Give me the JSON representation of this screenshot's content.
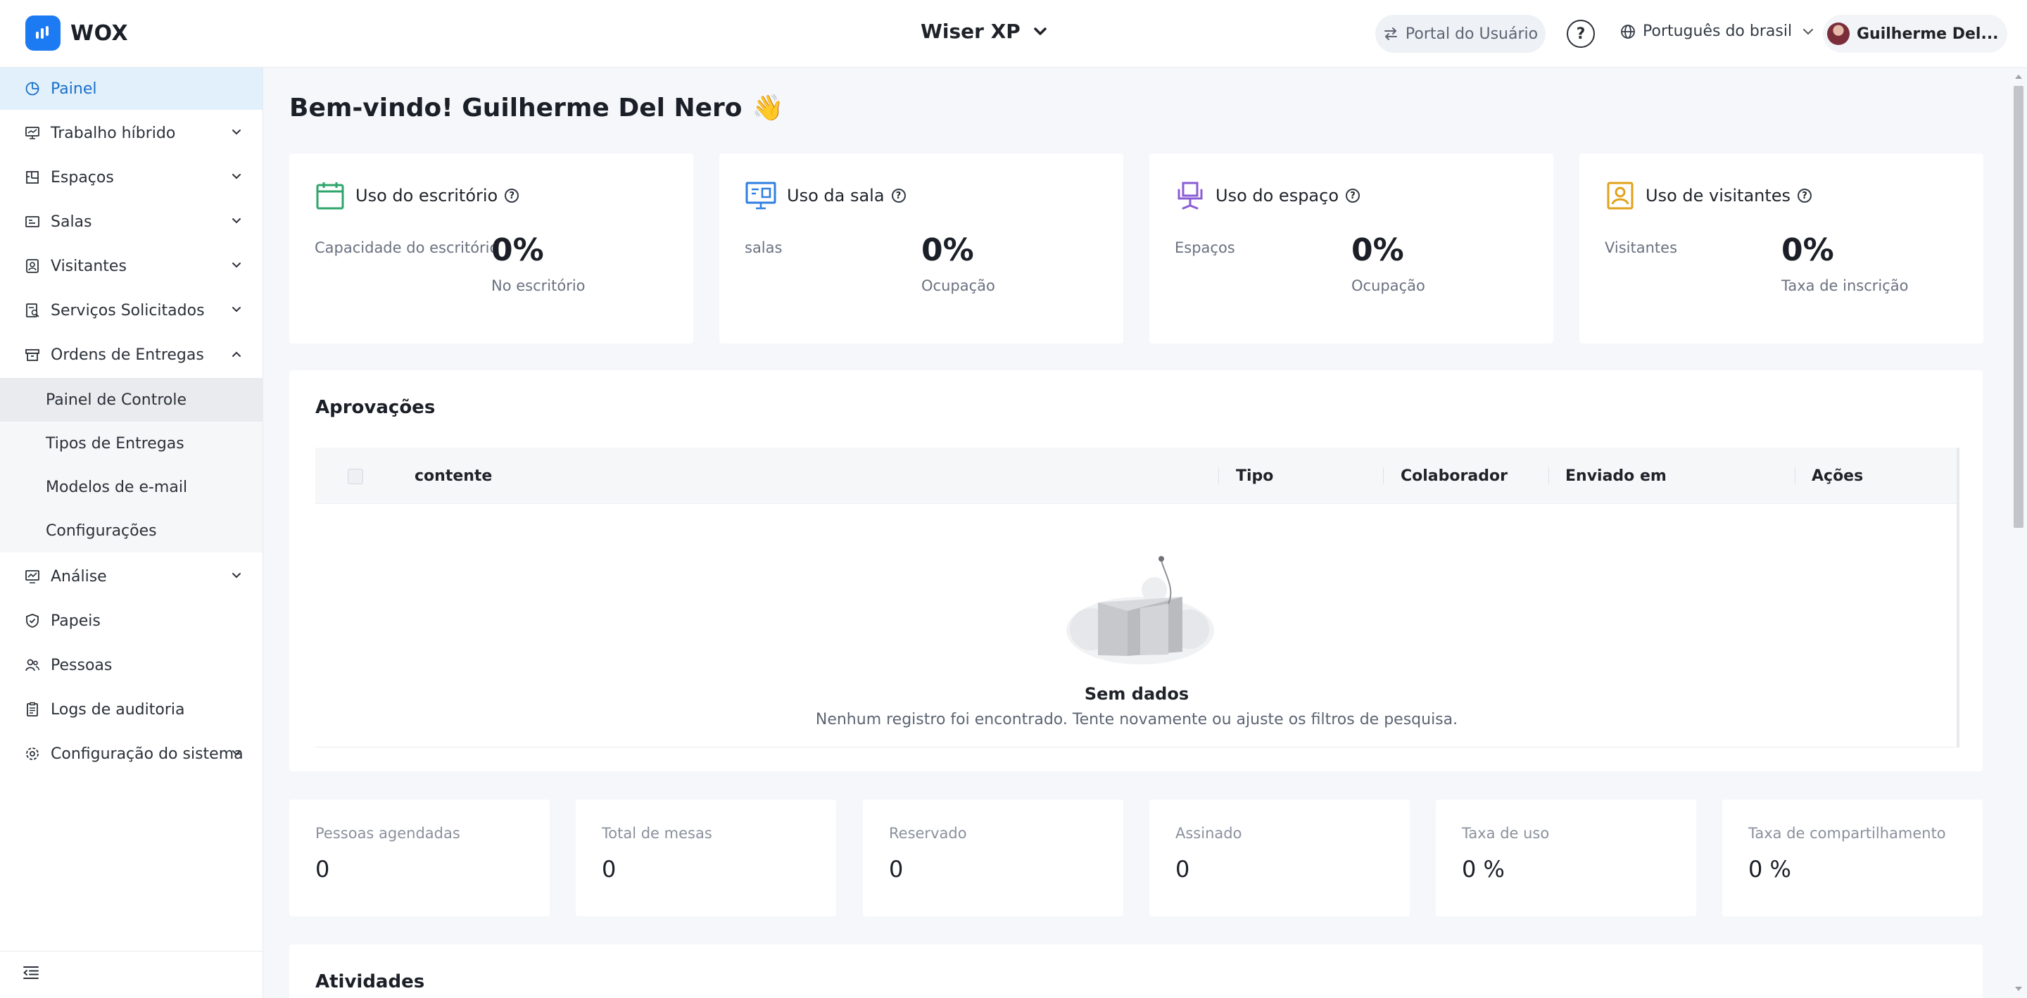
{
  "header": {
    "logo_text": "WOX",
    "workspace": "Wiser XP",
    "portal_label": "Portal do Usuário",
    "language": "Português do brasil",
    "user_name": "Guilherme Del..."
  },
  "sidebar": {
    "items": [
      {
        "label": "Painel",
        "icon": "dashboard-icon"
      },
      {
        "label": "Trabalho híbrido",
        "icon": "monitor-icon"
      },
      {
        "label": "Espaços",
        "icon": "floorplan-icon"
      },
      {
        "label": "Salas",
        "icon": "room-icon"
      },
      {
        "label": "Visitantes",
        "icon": "visitor-icon"
      },
      {
        "label": "Serviços Solicitados",
        "icon": "service-icon"
      },
      {
        "label": "Ordens de Entregas",
        "icon": "box-icon"
      },
      {
        "label": "Análise",
        "icon": "chart-icon"
      },
      {
        "label": "Papeis",
        "icon": "shield-icon"
      },
      {
        "label": "Pessoas",
        "icon": "people-icon"
      },
      {
        "label": "Logs de auditoria",
        "icon": "clipboard-icon"
      },
      {
        "label": "Configuração do sistema",
        "icon": "settings-icon"
      }
    ],
    "subitems": [
      "Painel de Controle",
      "Tipos de Entregas",
      "Modelos de e-mail",
      "Configurações"
    ]
  },
  "main": {
    "welcome": "Bem-vindo! Guilherme Del Nero",
    "welcome_emoji": "👋",
    "cards": [
      {
        "title": "Uso do escritório",
        "label": "Capacidade do escritório",
        "value": "0%",
        "sub": "No escritório",
        "color": "#2fa56b"
      },
      {
        "title": "Uso da sala",
        "label": "salas",
        "value": "0%",
        "sub": "Ocupação",
        "color": "#2f7fe0"
      },
      {
        "title": "Uso do espaço",
        "label": "Espaços",
        "value": "0%",
        "sub": "Ocupação",
        "color": "#8a5cd6"
      },
      {
        "title": "Uso de visitantes",
        "label": "Visitantes",
        "value": "0%",
        "sub": "Taxa de inscrição",
        "color": "#e0a21a"
      }
    ],
    "approvals": {
      "title": "Aprovações",
      "columns": [
        "contente",
        "Tipo",
        "Colaborador",
        "Enviado em",
        "Ações"
      ],
      "empty_title": "Sem dados",
      "empty_desc": "Nenhum registro foi encontrado. Tente novamente ou ajuste os filtros de pesquisa."
    },
    "metrics": [
      {
        "label": "Pessoas agendadas",
        "value": "0"
      },
      {
        "label": "Total de mesas",
        "value": "0"
      },
      {
        "label": "Reservado",
        "value": "0"
      },
      {
        "label": "Assinado",
        "value": "0"
      },
      {
        "label": "Taxa de uso",
        "value": "0 %"
      },
      {
        "label": "Taxa de compartilhamento",
        "value": "0 %"
      }
    ],
    "activities_title": "Atividades"
  }
}
